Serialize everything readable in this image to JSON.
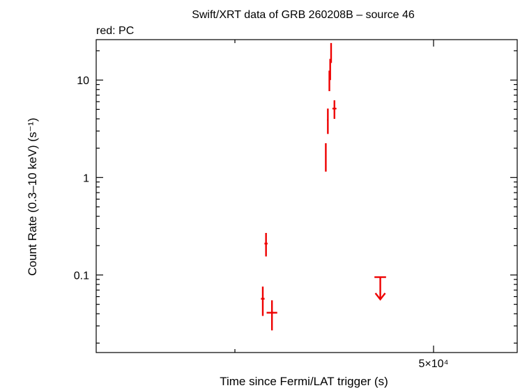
{
  "chart_data": {
    "type": "scatter",
    "title": "Swift/XRT data of GRB 260208B – source 46",
    "subtitle": "red: PC",
    "xlabel": "Time since Fermi/LAT trigger (s)",
    "ylabel": "Count Rate (0.3–10 keV) (s⁻¹)",
    "x_scale": "log",
    "y_scale": "log",
    "xlim": [
      21000,
      62000
    ],
    "ylim": [
      0.016,
      26
    ],
    "x_ticks": [
      {
        "value": 50000,
        "label": "5×10⁴"
      }
    ],
    "x_minor_ticks": [
      30000
    ],
    "y_ticks": [
      {
        "value": 0.1,
        "label": "0.1"
      },
      {
        "value": 1,
        "label": "1"
      },
      {
        "value": 10,
        "label": "10"
      }
    ],
    "grid": false,
    "series": [
      {
        "color": "#ee0000",
        "points": [
          {
            "x": 32230,
            "xerr": [
              150,
              150
            ],
            "y": 0.057,
            "yerr": [
              0.019,
              0.019
            ]
          },
          {
            "x": 32500,
            "xerr": [
              130,
              130
            ],
            "y": 0.21,
            "yerr": [
              0.055,
              0.06
            ]
          },
          {
            "x": 33000,
            "xerr": [
              450,
              450
            ],
            "y": 0.041,
            "yerr": [
              0.014,
              0.014
            ]
          },
          {
            "x": 37900,
            "xerr": [
              60,
              60
            ],
            "y": 1.7,
            "yerr": [
              0.55,
              0.55
            ]
          },
          {
            "x": 38100,
            "xerr": [
              80,
              80
            ],
            "y": 3.9,
            "yerr": [
              1.1,
              1.2
            ]
          },
          {
            "x": 38250,
            "xerr": [
              60,
              60
            ],
            "y": 10,
            "yerr": [
              2.3,
              2.5
            ]
          },
          {
            "x": 38330,
            "xerr": [
              40,
              40
            ],
            "y": 13,
            "yerr": [
              3,
              3.5
            ]
          },
          {
            "x": 38420,
            "xerr": [
              40,
              40
            ],
            "y": 19,
            "yerr": [
              4,
              5
            ]
          },
          {
            "x": 38750,
            "xerr": [
              200,
              200
            ],
            "y": 5.1,
            "yerr": [
              1.1,
              1.1
            ]
          }
        ],
        "upper_limits": [
          {
            "x": 43600,
            "xerr": [
              650,
              650
            ],
            "y": 0.095
          }
        ]
      }
    ]
  }
}
